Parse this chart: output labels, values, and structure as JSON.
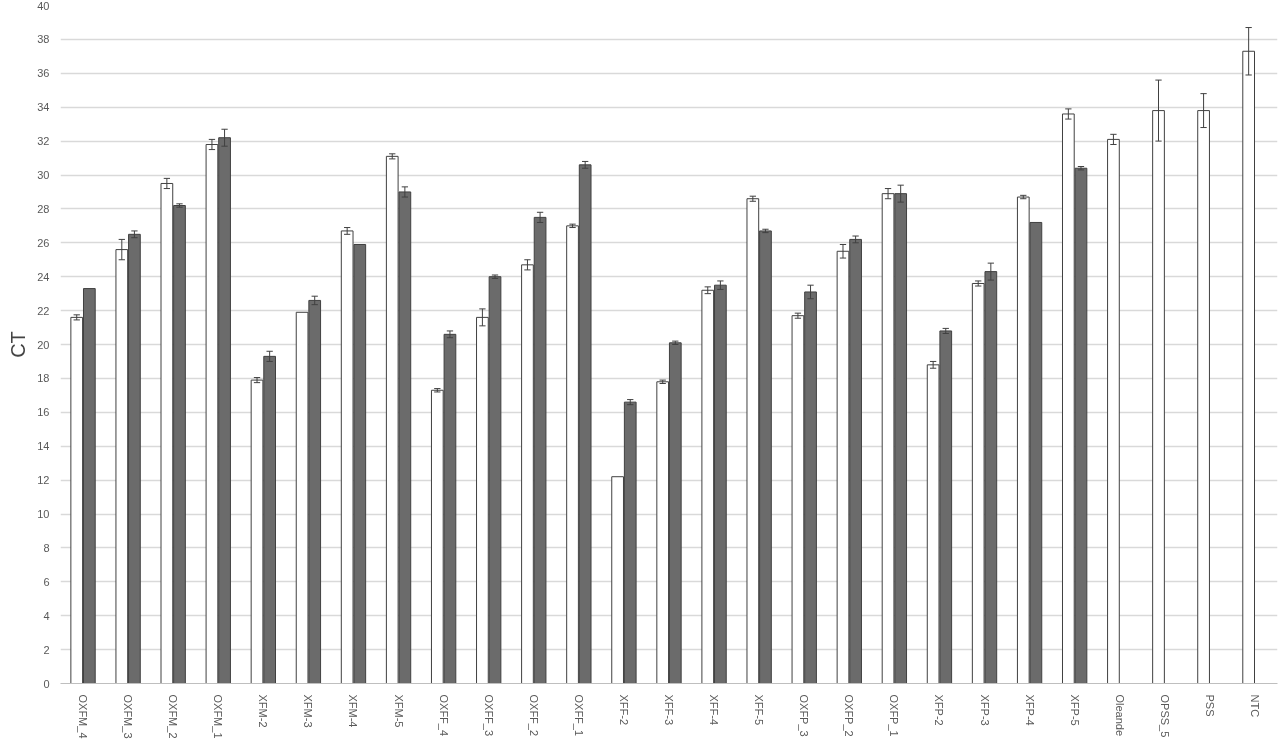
{
  "chart_data": {
    "type": "bar",
    "ylabel": "CT",
    "categories": [
      "OXFM_4",
      "OXFM_3",
      "OXFM_2",
      "OXFM_1",
      "XFM-2",
      "XFM-3",
      "XFM-4",
      "XFM-5",
      "OXFF_4",
      "OXFF_3",
      "OXFF_2",
      "OXFF_1",
      "XFF-2",
      "XFF-3",
      "XFF-4",
      "XFF-5",
      "OXFP_3",
      "OXFP_2",
      "OXFP_1",
      "XFP-2",
      "XFP-3",
      "XFP-4",
      "XFP-5",
      "Oleande",
      "OPSS_5",
      "PSS",
      "NTC"
    ],
    "series": [
      {
        "color": "#ffffff",
        "values": [
          21.6,
          25.6,
          29.5,
          31.8,
          17.9,
          21.9,
          26.7,
          31.1,
          17.3,
          21.6,
          24.7,
          27.0,
          12.2,
          17.8,
          23.2,
          28.6,
          21.7,
          25.5,
          28.9,
          18.8,
          23.6,
          28.7,
          33.6,
          32.1,
          33.8,
          33.8,
          37.3
        ],
        "errors": [
          0.15,
          0.6,
          0.3,
          0.3,
          0.15,
          null,
          0.2,
          0.15,
          0.1,
          0.5,
          0.3,
          0.1,
          null,
          0.1,
          0.2,
          0.15,
          0.15,
          0.4,
          0.3,
          0.2,
          0.15,
          0.1,
          0.3,
          0.3,
          1.8,
          1.0,
          1.4
        ]
      },
      {
        "color": "#6b6b6b",
        "values": [
          23.3,
          26.5,
          28.2,
          32.2,
          19.3,
          22.6,
          25.9,
          29.0,
          20.6,
          24.0,
          27.5,
          30.6,
          16.6,
          20.1,
          23.5,
          26.7,
          23.1,
          26.2,
          28.9,
          20.8,
          24.3,
          27.2,
          30.4,
          null,
          null,
          null,
          null
        ],
        "errors": [
          null,
          0.2,
          0.1,
          0.5,
          0.3,
          0.25,
          null,
          0.3,
          0.2,
          0.1,
          0.3,
          0.2,
          0.15,
          0.1,
          0.25,
          0.1,
          0.4,
          0.2,
          0.5,
          0.15,
          0.5,
          null,
          0.1,
          null,
          null,
          null,
          null
        ]
      }
    ],
    "ylim": [
      0,
      40
    ],
    "yticks": [
      0,
      2,
      4,
      6,
      8,
      10,
      12,
      14,
      16,
      18,
      20,
      22,
      24,
      26,
      28,
      30,
      32,
      34,
      36,
      38,
      40
    ],
    "grid": "y"
  }
}
